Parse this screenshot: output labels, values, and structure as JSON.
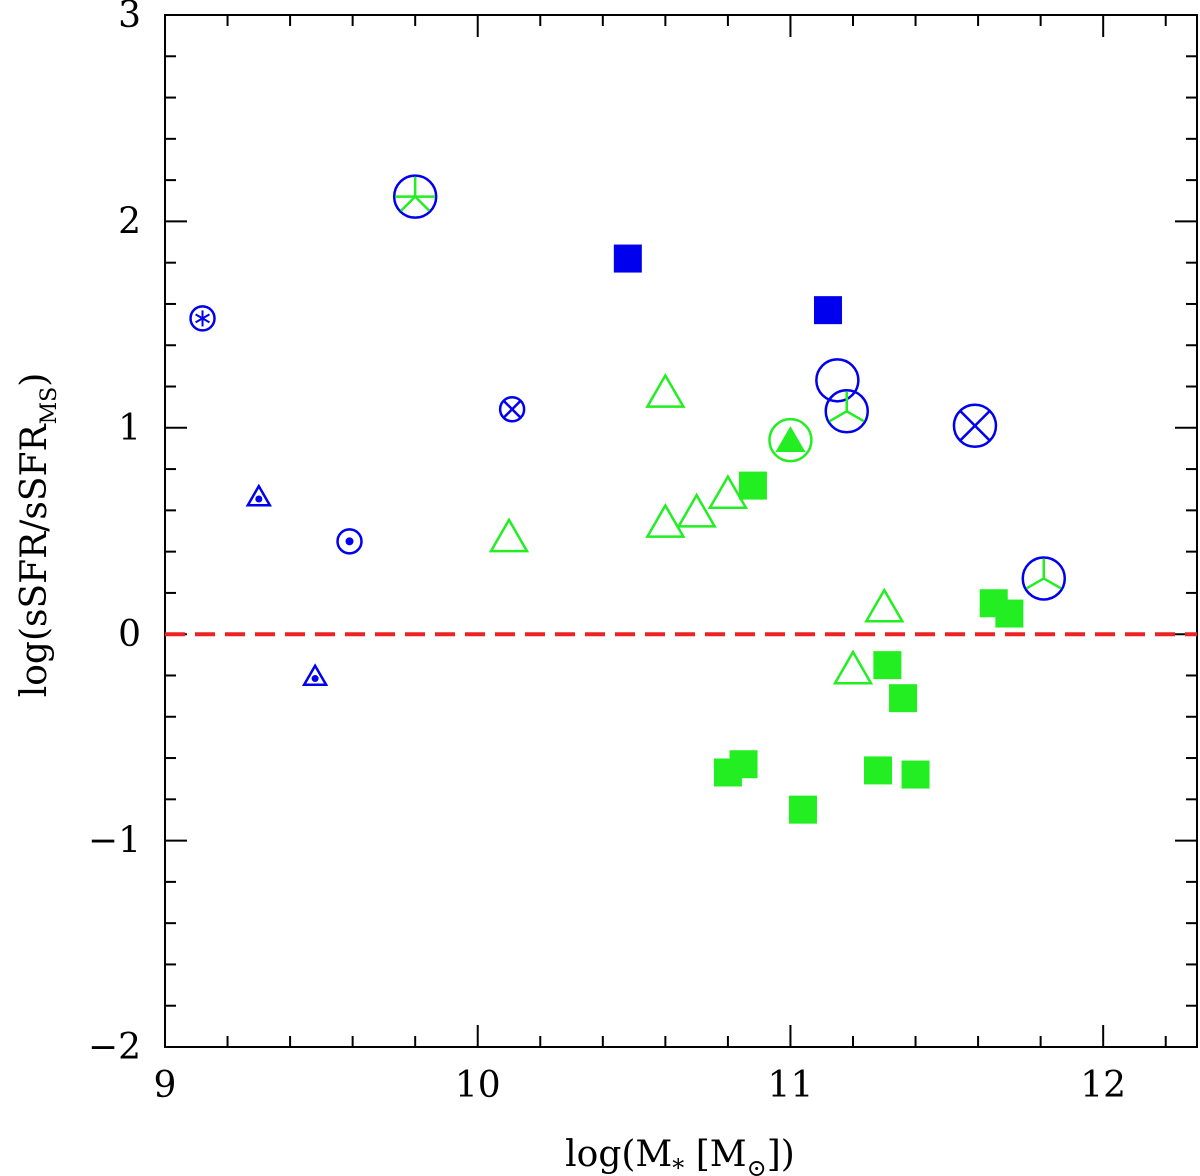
{
  "chart_data": {
    "type": "scatter",
    "xlabel": "log(M* [M⊙])",
    "ylabel": "log(sSFR/sSFR_MS)",
    "xlabel_parts": {
      "pre": "log(M",
      "sub": "*",
      "mid": " [M",
      "sub2": "⊙",
      "post": "])"
    },
    "ylabel_parts": {
      "pre": "log(sSFR/sSFR",
      "sub": "MS",
      "post": ")"
    },
    "xlim": [
      9,
      12.3
    ],
    "ylim": [
      -2,
      3
    ],
    "xticks": [
      9,
      10,
      11,
      12
    ],
    "yticks": [
      -2,
      -1,
      0,
      1,
      2,
      3
    ],
    "xtick_labels": [
      "9",
      "10",
      "11",
      "12"
    ],
    "ytick_labels": [
      "−2",
      "−1",
      "0",
      "1",
      "2",
      "3"
    ],
    "reference_line": {
      "y": 0,
      "style": "dashed",
      "color": "#ee2222"
    },
    "colors": {
      "blue": "#0000ee",
      "green": "#22ee22"
    },
    "series": [
      {
        "name": "green filled squares",
        "marker": "square-filled",
        "color": "green",
        "points": [
          [
            10.88,
            0.72
          ],
          [
            10.8,
            -0.67
          ],
          [
            10.85,
            -0.63
          ],
          [
            11.04,
            -0.85
          ],
          [
            11.31,
            -0.15
          ],
          [
            11.36,
            -0.31
          ],
          [
            11.28,
            -0.66
          ],
          [
            11.4,
            -0.68
          ],
          [
            11.65,
            0.15
          ],
          [
            11.7,
            0.1
          ]
        ]
      },
      {
        "name": "green open triangles",
        "marker": "triangle-open",
        "color": "green",
        "points": [
          [
            10.1,
            0.46
          ],
          [
            10.6,
            1.16
          ],
          [
            10.6,
            0.53
          ],
          [
            10.7,
            0.58
          ],
          [
            10.8,
            0.67
          ],
          [
            11.2,
            -0.18
          ],
          [
            11.3,
            0.12
          ]
        ]
      },
      {
        "name": "green filled triangle in circle",
        "marker": "triangle-in-circle",
        "color": "green",
        "points": [
          [
            11.0,
            0.94
          ]
        ]
      },
      {
        "name": "blue filled squares",
        "marker": "square-filled",
        "color": "blue",
        "points": [
          [
            10.48,
            1.82
          ],
          [
            11.12,
            1.57
          ]
        ]
      },
      {
        "name": "blue open circles",
        "marker": "circle-open",
        "color": "blue",
        "points": [
          [
            11.15,
            1.23
          ]
        ]
      },
      {
        "name": "blue circles with green tripod",
        "marker": "circle-tripod",
        "color": "blue",
        "points": [
          [
            11.18,
            1.08
          ],
          [
            11.81,
            0.27
          ]
        ]
      },
      {
        "name": "blue circle with green star",
        "marker": "circle-star",
        "color": "blue",
        "points": [
          [
            9.8,
            2.12
          ]
        ]
      },
      {
        "name": "blue circles with cross",
        "marker": "circle-cross",
        "color": "blue",
        "points": [
          [
            10.11,
            1.09
          ],
          [
            11.59,
            1.01
          ]
        ]
      },
      {
        "name": "blue circle with asterisk",
        "marker": "circle-asterisk",
        "color": "blue",
        "points": [
          [
            9.12,
            1.53
          ]
        ]
      },
      {
        "name": "blue circle with dot",
        "marker": "circle-dot",
        "color": "blue",
        "points": [
          [
            9.59,
            0.45
          ]
        ]
      },
      {
        "name": "blue triangles with dot",
        "marker": "triangle-dot",
        "color": "blue",
        "points": [
          [
            9.3,
            0.66
          ],
          [
            9.48,
            -0.21
          ]
        ]
      }
    ]
  }
}
